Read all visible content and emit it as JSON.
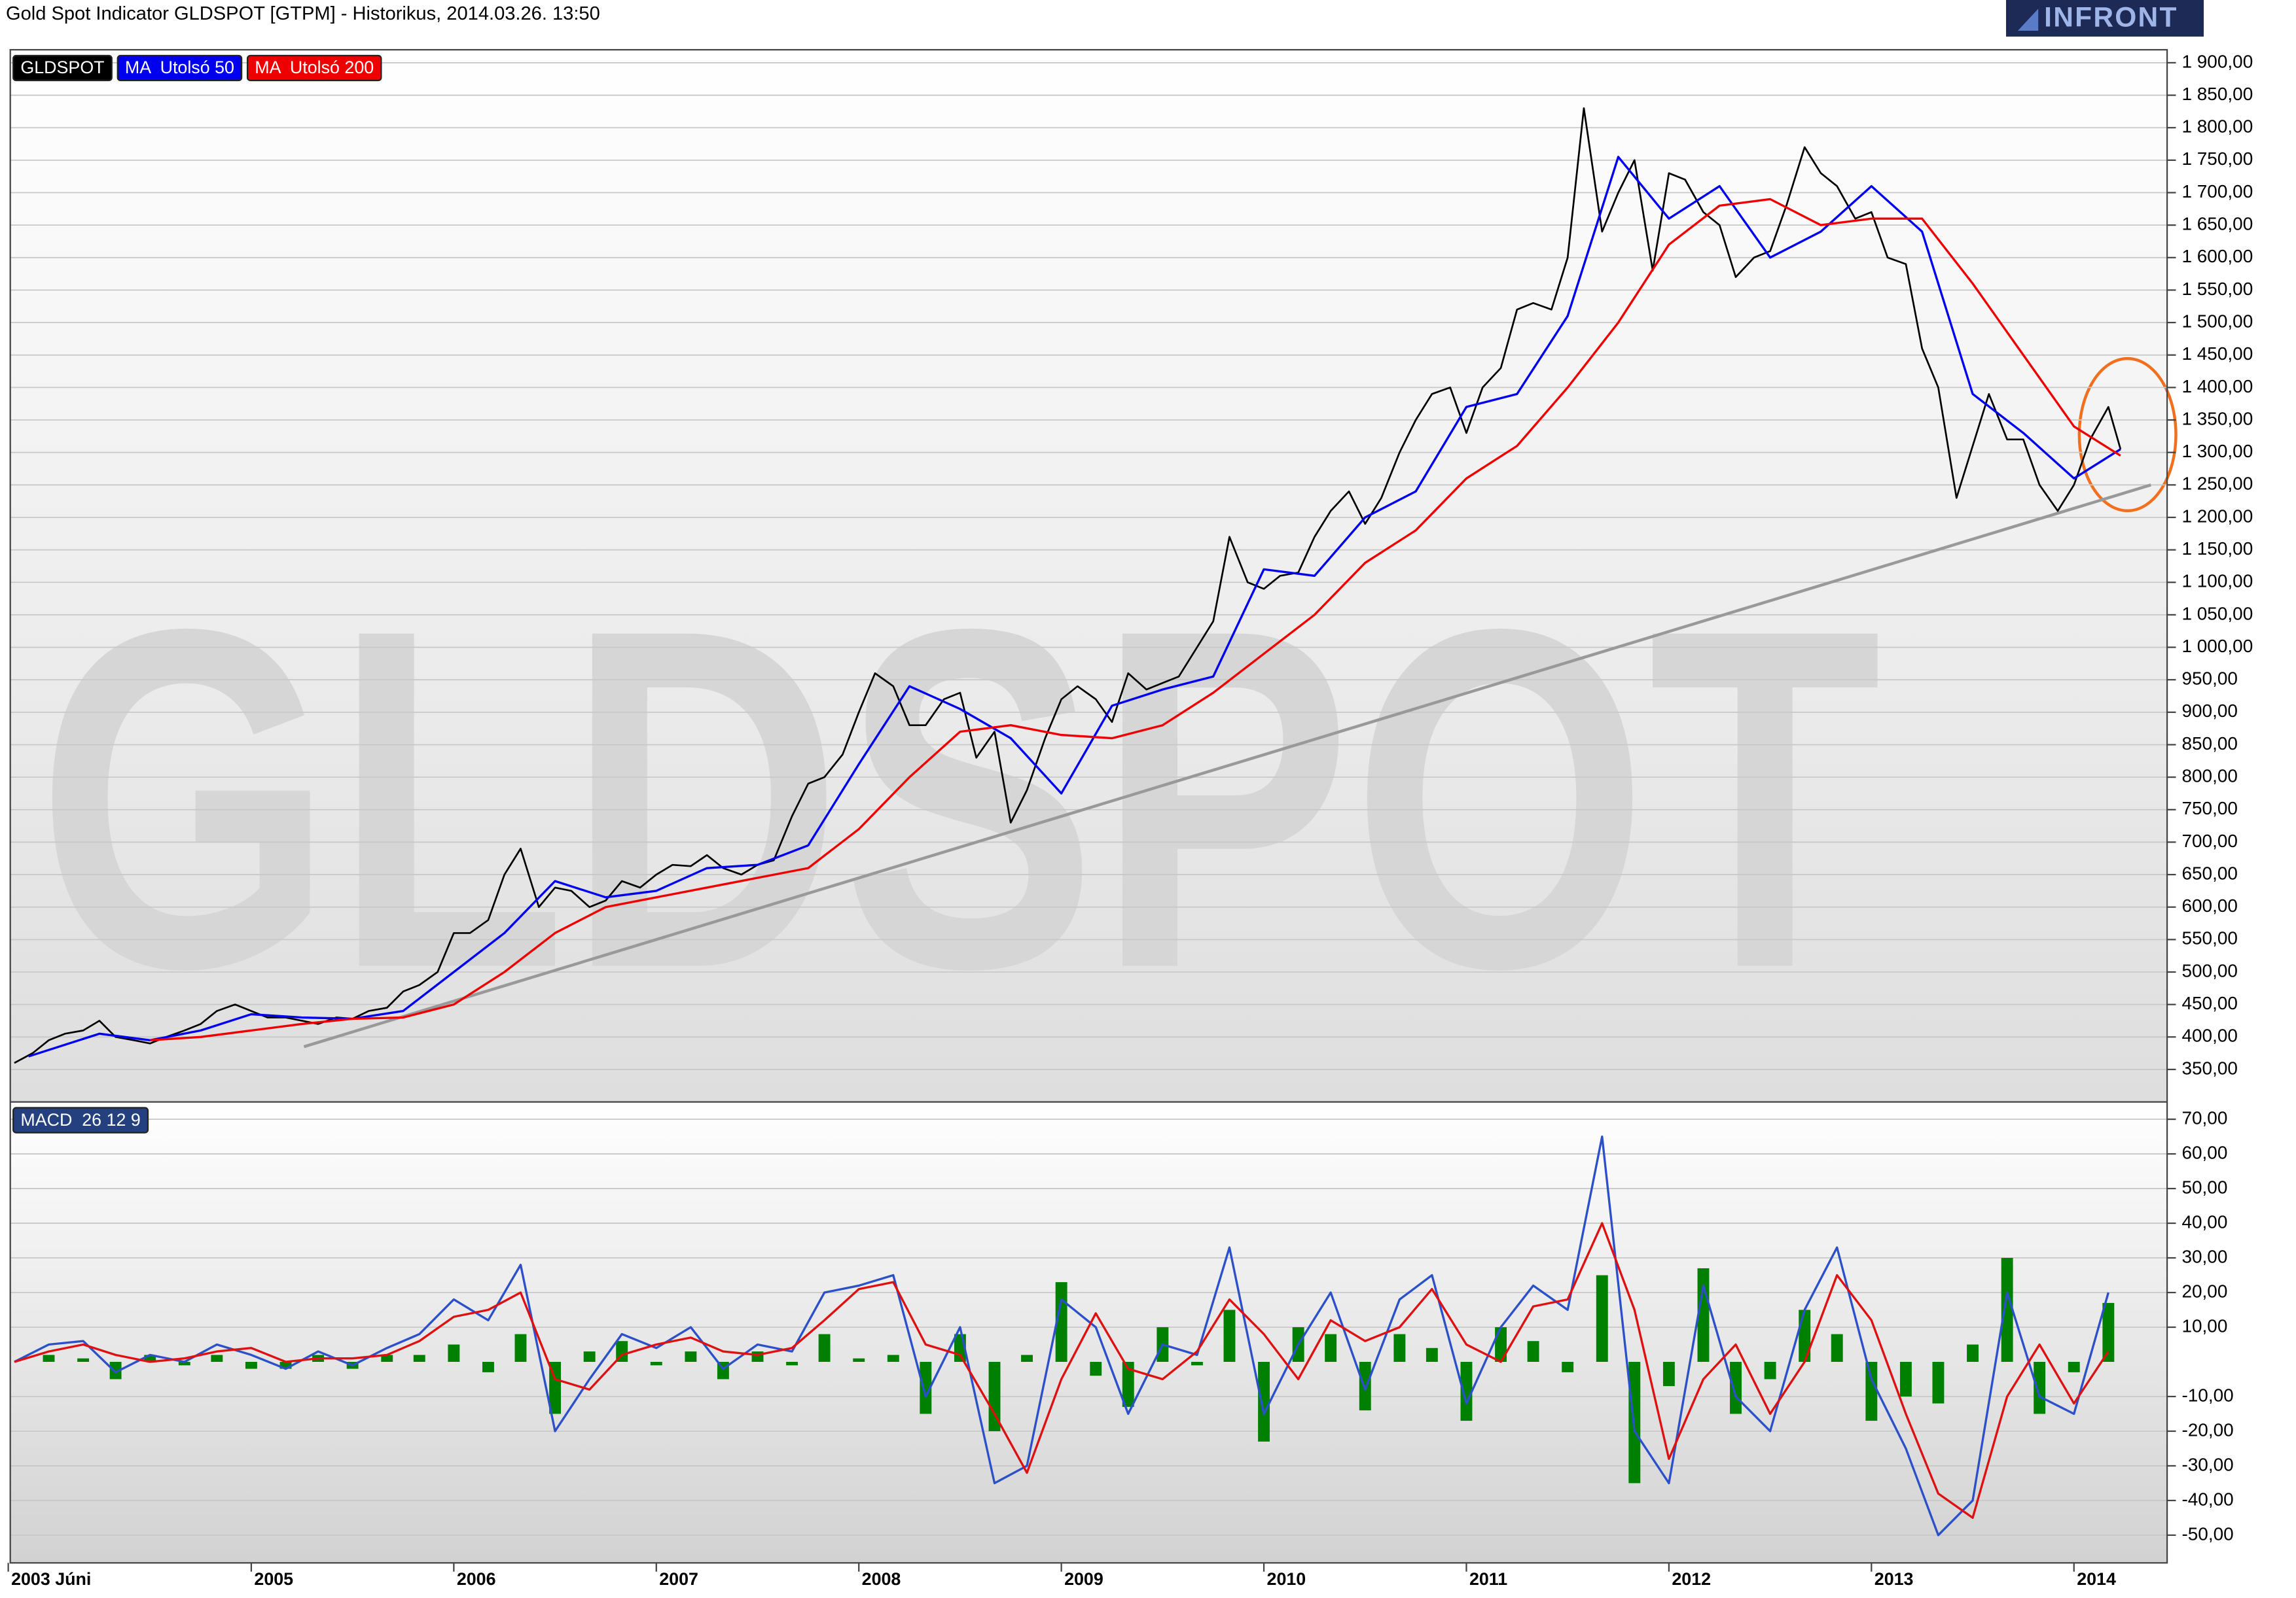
{
  "title": "Gold Spot Indicator GLDSPOT [GTPM] - Historikus, 2014.03.26. 13:50",
  "logo": "INFRONT",
  "chart_data": [
    {
      "type": "line",
      "watermark": "GLDSPOT",
      "grid": true,
      "xlim": [
        2003.81,
        2014.46
      ],
      "ylim": [
        300,
        1920
      ],
      "yticks": [
        {
          "value": 350,
          "label": "350,00"
        },
        {
          "value": 400,
          "label": "400,00"
        },
        {
          "value": 450,
          "label": "450,00"
        },
        {
          "value": 500,
          "label": "500,00"
        },
        {
          "value": 550,
          "label": "550,00"
        },
        {
          "value": 600,
          "label": "600,00"
        },
        {
          "value": 650,
          "label": "650,00"
        },
        {
          "value": 700,
          "label": "700,00"
        },
        {
          "value": 750,
          "label": "750,00"
        },
        {
          "value": 800,
          "label": "800,00"
        },
        {
          "value": 850,
          "label": "850,00"
        },
        {
          "value": 900,
          "label": "900,00"
        },
        {
          "value": 950,
          "label": "950,00"
        },
        {
          "value": 1000,
          "label": "1 000,00"
        },
        {
          "value": 1050,
          "label": "1 050,00"
        },
        {
          "value": 1100,
          "label": "1 100,00"
        },
        {
          "value": 1150,
          "label": "1 150,00"
        },
        {
          "value": 1200,
          "label": "1 200,00"
        },
        {
          "value": 1250,
          "label": "1 250,00"
        },
        {
          "value": 1300,
          "label": "1 300,00"
        },
        {
          "value": 1350,
          "label": "1 350,00"
        },
        {
          "value": 1400,
          "label": "1 400,00"
        },
        {
          "value": 1450,
          "label": "1 450,00"
        },
        {
          "value": 1500,
          "label": "1 500,00"
        },
        {
          "value": 1550,
          "label": "1 550,00"
        },
        {
          "value": 1600,
          "label": "1 600,00"
        },
        {
          "value": 1650,
          "label": "1 650,00"
        },
        {
          "value": 1700,
          "label": "1 700,00"
        },
        {
          "value": 1750,
          "label": "1 750,00"
        },
        {
          "value": 1800,
          "label": "1 800,00"
        },
        {
          "value": 1850,
          "label": "1 850,00"
        },
        {
          "value": 1900,
          "label": "1 900,00"
        }
      ],
      "series": [
        {
          "name": "GLDSPOT",
          "color": "#000000",
          "x": [
            2003.83,
            2003.92,
            2004,
            2004.08,
            2004.17,
            2004.25,
            2004.33,
            2004.42,
            2004.5,
            2004.58,
            2004.67,
            2004.75,
            2004.83,
            2004.92,
            2005,
            2005.08,
            2005.17,
            2005.25,
            2005.33,
            2005.42,
            2005.5,
            2005.58,
            2005.67,
            2005.75,
            2005.83,
            2005.92,
            2006,
            2006.08,
            2006.17,
            2006.25,
            2006.33,
            2006.42,
            2006.5,
            2006.58,
            2006.67,
            2006.75,
            2006.83,
            2006.92,
            2007,
            2007.08,
            2007.17,
            2007.25,
            2007.33,
            2007.42,
            2007.5,
            2007.58,
            2007.67,
            2007.75,
            2007.83,
            2007.92,
            2008,
            2008.08,
            2008.17,
            2008.25,
            2008.33,
            2008.42,
            2008.5,
            2008.58,
            2008.67,
            2008.75,
            2008.83,
            2008.92,
            2009,
            2009.08,
            2009.17,
            2009.25,
            2009.33,
            2009.42,
            2009.5,
            2009.58,
            2009.67,
            2009.75,
            2009.83,
            2009.92,
            2010,
            2010.08,
            2010.17,
            2010.25,
            2010.33,
            2010.42,
            2010.5,
            2010.58,
            2010.67,
            2010.75,
            2010.83,
            2010.92,
            2011,
            2011.08,
            2011.17,
            2011.25,
            2011.33,
            2011.42,
            2011.5,
            2011.58,
            2011.67,
            2011.75,
            2011.83,
            2011.92,
            2012,
            2012.08,
            2012.17,
            2012.25,
            2012.33,
            2012.42,
            2012.5,
            2012.58,
            2012.67,
            2012.75,
            2012.83,
            2012.92,
            2013,
            2013.08,
            2013.17,
            2013.25,
            2013.33,
            2013.42,
            2013.5,
            2013.58,
            2013.67,
            2013.75,
            2013.83,
            2013.92,
            2014,
            2014.08,
            2014.17,
            2014.23
          ],
          "values": [
            360,
            375,
            395,
            405,
            410,
            425,
            400,
            395,
            390,
            400,
            410,
            420,
            440,
            450,
            440,
            430,
            430,
            425,
            420,
            430,
            428,
            440,
            445,
            470,
            480,
            500,
            560,
            560,
            580,
            650,
            690,
            600,
            630,
            625,
            600,
            610,
            640,
            630,
            650,
            665,
            663,
            680,
            660,
            650,
            665,
            672,
            740,
            790,
            800,
            835,
            900,
            960,
            940,
            880,
            880,
            920,
            930,
            830,
            870,
            730,
            780,
            860,
            920,
            940,
            920,
            885,
            960,
            935,
            945,
            955,
            1000,
            1040,
            1170,
            1100,
            1090,
            1110,
            1115,
            1170,
            1210,
            1240,
            1190,
            1230,
            1300,
            1350,
            1390,
            1400,
            1330,
            1400,
            1430,
            1520,
            1530,
            1520,
            1600,
            1830,
            1640,
            1700,
            1750,
            1580,
            1730,
            1720,
            1670,
            1650,
            1570,
            1600,
            1610,
            1680,
            1770,
            1730,
            1710,
            1660,
            1670,
            1600,
            1590,
            1460,
            1400,
            1230,
            1310,
            1390,
            1320,
            1320,
            1250,
            1210,
            1250,
            1320,
            1370,
            1305
          ]
        },
        {
          "name": "MA  Utolsó 50",
          "color": "#0000ee",
          "x": [
            2003.9,
            2004.25,
            2004.5,
            2004.75,
            2005,
            2005.25,
            2005.5,
            2005.75,
            2006,
            2006.25,
            2006.5,
            2006.75,
            2007,
            2007.25,
            2007.5,
            2007.75,
            2008,
            2008.25,
            2008.5,
            2008.75,
            2009,
            2009.25,
            2009.5,
            2009.75,
            2010,
            2010.25,
            2010.5,
            2010.75,
            2011,
            2011.25,
            2011.5,
            2011.75,
            2012,
            2012.25,
            2012.5,
            2012.75,
            2013,
            2013.25,
            2013.5,
            2013.75,
            2014,
            2014.23
          ],
          "values": [
            370,
            405,
            395,
            410,
            435,
            430,
            428,
            440,
            500,
            560,
            640,
            615,
            625,
            660,
            665,
            695,
            820,
            940,
            905,
            860,
            775,
            910,
            935,
            955,
            1120,
            1110,
            1200,
            1240,
            1370,
            1390,
            1510,
            1755,
            1660,
            1710,
            1600,
            1640,
            1710,
            1640,
            1390,
            1330,
            1260,
            1305
          ]
        },
        {
          "name": "MA  Utolsó 200",
          "color": "#ee0000",
          "x": [
            2004.5,
            2004.75,
            2005,
            2005.25,
            2005.5,
            2005.75,
            2006,
            2006.25,
            2006.5,
            2006.75,
            2007,
            2007.25,
            2007.5,
            2007.75,
            2008,
            2008.25,
            2008.5,
            2008.75,
            2009,
            2009.25,
            2009.5,
            2009.75,
            2010,
            2010.25,
            2010.5,
            2010.75,
            2011,
            2011.25,
            2011.5,
            2011.75,
            2012,
            2012.25,
            2012.5,
            2012.75,
            2013,
            2013.25,
            2013.5,
            2013.75,
            2014,
            2014.23
          ],
          "values": [
            395,
            400,
            410,
            420,
            428,
            430,
            450,
            500,
            560,
            600,
            615,
            630,
            645,
            660,
            720,
            800,
            870,
            880,
            865,
            860,
            880,
            930,
            990,
            1050,
            1130,
            1180,
            1260,
            1310,
            1400,
            1500,
            1620,
            1680,
            1690,
            1650,
            1660,
            1660,
            1560,
            1450,
            1340,
            1295
          ]
        }
      ],
      "trendline": {
        "color": "#999999",
        "x": [
          2005.26,
          2014.38
        ],
        "values": [
          385,
          1250
        ]
      }
    },
    {
      "type": "line",
      "label": "MACD  26 12 9",
      "grid": true,
      "xlim": [
        2003.81,
        2014.46
      ],
      "ylim": [
        -58,
        75
      ],
      "yticks": [
        {
          "value": 70,
          "label": "70,00"
        },
        {
          "value": 60,
          "label": "60,00"
        },
        {
          "value": 50,
          "label": "50,00"
        },
        {
          "value": 40,
          "label": "40,00"
        },
        {
          "value": 30,
          "label": "30,00"
        },
        {
          "value": 20,
          "label": "20,00"
        },
        {
          "value": 10,
          "label": "10,00"
        },
        {
          "value": -10,
          "label": "-10,00"
        },
        {
          "value": -20,
          "label": "-20,00"
        },
        {
          "value": -30,
          "label": "-30,00"
        },
        {
          "value": -40,
          "label": "-40,00"
        },
        {
          "value": -50,
          "label": "-50,00"
        }
      ],
      "xticks": [
        {
          "value": 2003.8,
          "label": "2003 Júni"
        },
        2005,
        2006,
        2007,
        2008,
        2009,
        2010,
        2011,
        2012,
        2013,
        2014
      ],
      "x": [
        2003.83,
        2004,
        2004.17,
        2004.33,
        2004.5,
        2004.67,
        2004.83,
        2005,
        2005.17,
        2005.33,
        2005.5,
        2005.67,
        2005.83,
        2006,
        2006.17,
        2006.33,
        2006.5,
        2006.67,
        2006.83,
        2007,
        2007.17,
        2007.33,
        2007.5,
        2007.67,
        2007.83,
        2008,
        2008.17,
        2008.33,
        2008.5,
        2008.67,
        2008.83,
        2009,
        2009.17,
        2009.33,
        2009.5,
        2009.67,
        2009.83,
        2010,
        2010.17,
        2010.33,
        2010.5,
        2010.67,
        2010.83,
        2011,
        2011.17,
        2011.33,
        2011.5,
        2011.67,
        2011.83,
        2012,
        2012.17,
        2012.33,
        2012.5,
        2012.67,
        2012.83,
        2013,
        2013.17,
        2013.33,
        2013.5,
        2013.67,
        2013.83,
        2014,
        2014.17
      ],
      "series": [
        {
          "type": "bar",
          "color": "#008000",
          "values": [
            0,
            2,
            1,
            -5,
            2,
            -1,
            2,
            -2,
            -2,
            2,
            -2,
            2,
            2,
            5,
            -3,
            8,
            -15,
            3,
            6,
            -1,
            3,
            -5,
            3,
            -1,
            8,
            1,
            2,
            -15,
            8,
            -20,
            2,
            23,
            -4,
            -13,
            10,
            -1,
            15,
            -23,
            10,
            8,
            -14,
            8,
            4,
            -17,
            10,
            6,
            -3,
            25,
            -35,
            -7,
            27,
            -15,
            -5,
            15,
            8,
            -17,
            -10,
            -12,
            5,
            30,
            -15,
            -3,
            17
          ]
        },
        {
          "color": "#2b50c8",
          "values": [
            0,
            5,
            6,
            -3,
            2,
            0,
            5,
            2,
            -2,
            3,
            -1,
            4,
            8,
            18,
            12,
            28,
            -20,
            -5,
            8,
            4,
            10,
            -2,
            5,
            3,
            20,
            22,
            25,
            -10,
            10,
            -35,
            -30,
            18,
            10,
            -15,
            5,
            2,
            33,
            -15,
            5,
            20,
            -8,
            18,
            25,
            -12,
            10,
            22,
            15,
            65,
            -20,
            -35,
            22,
            -10,
            -20,
            15,
            33,
            -5,
            -25,
            -50,
            -40,
            20,
            -10,
            -15,
            20
          ]
        },
        {
          "color": "#dd1111",
          "values": [
            0,
            3,
            5,
            2,
            0,
            1,
            3,
            4,
            0,
            1,
            1,
            2,
            6,
            13,
            15,
            20,
            -5,
            -8,
            2,
            5,
            7,
            3,
            2,
            4,
            12,
            21,
            23,
            5,
            2,
            -15,
            -32,
            -5,
            14,
            -2,
            -5,
            3,
            18,
            8,
            -5,
            12,
            6,
            10,
            21,
            5,
            0,
            16,
            18,
            40,
            15,
            -28,
            -5,
            5,
            -15,
            0,
            25,
            12,
            -15,
            -38,
            -45,
            -10,
            5,
            -12,
            3
          ]
        }
      ]
    }
  ]
}
